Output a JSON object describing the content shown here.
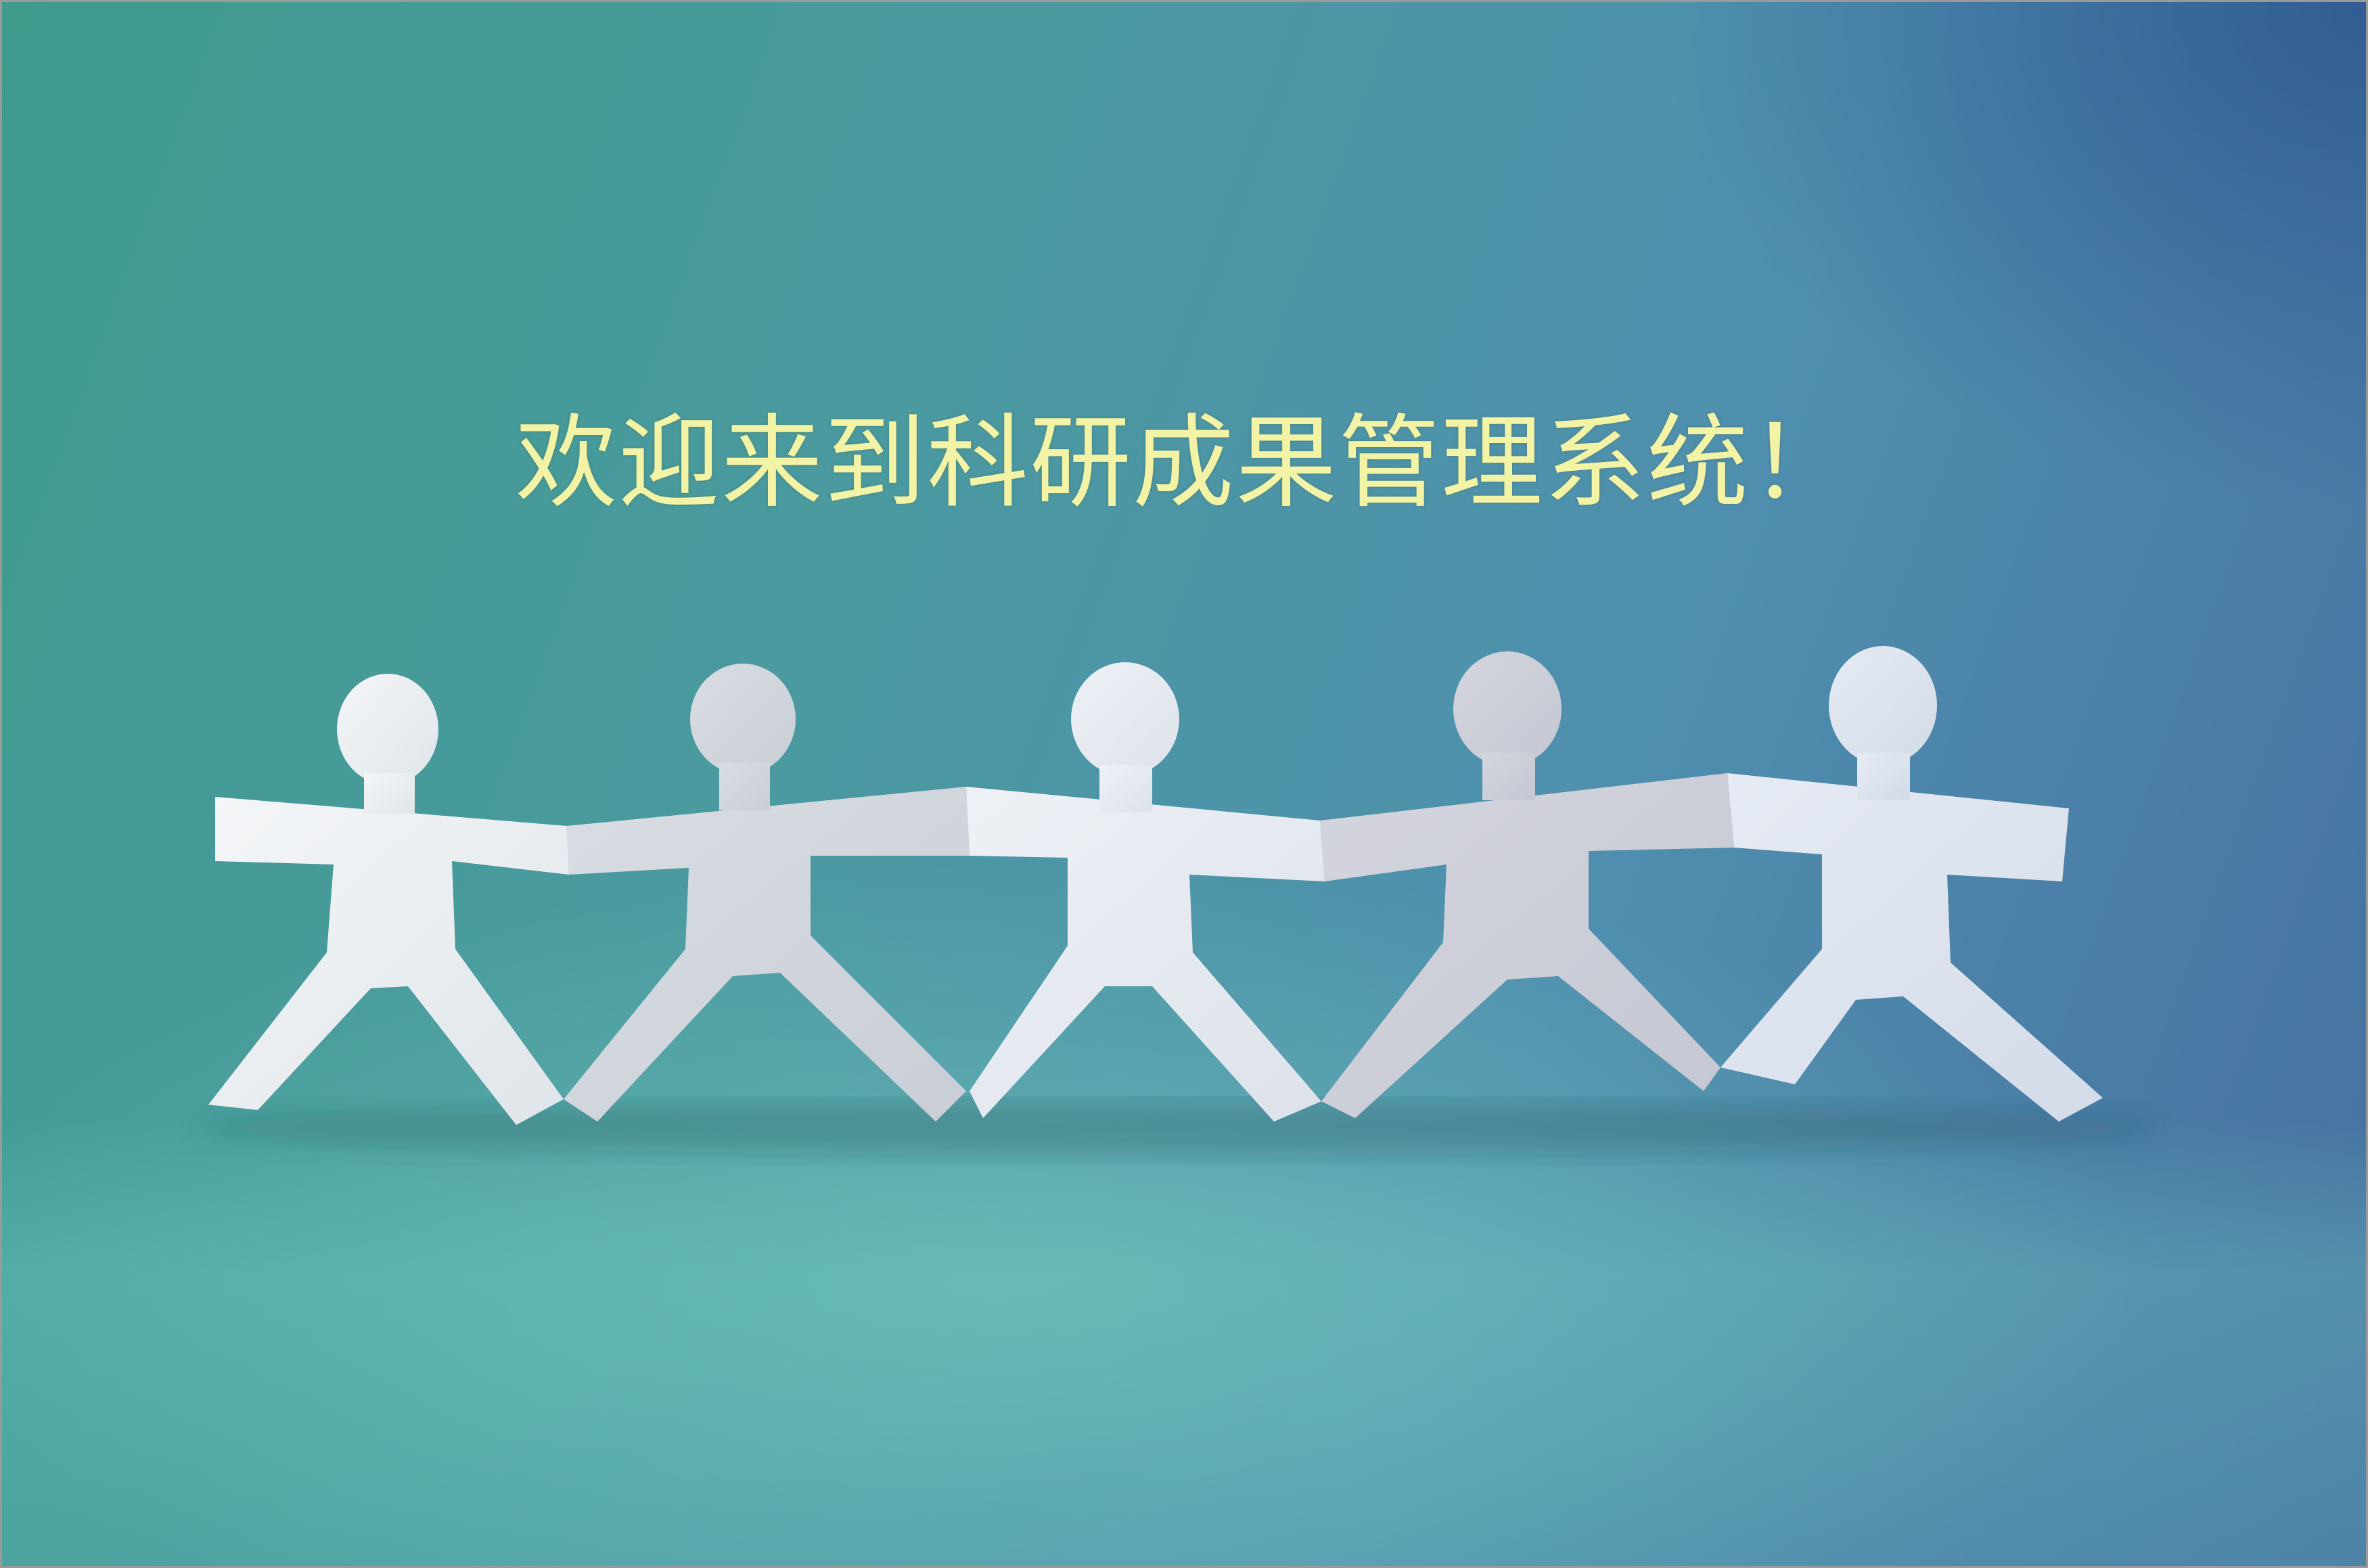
{
  "welcome": {
    "title": "欢迎来到科研成果管理系统！"
  },
  "image": {
    "icon": "paper-people-chain-illustration",
    "figure_count": 5
  },
  "colors": {
    "title_text": "#f3f3a6",
    "background_teal": "#3f9a8c",
    "background_blue": "#466fa0"
  }
}
